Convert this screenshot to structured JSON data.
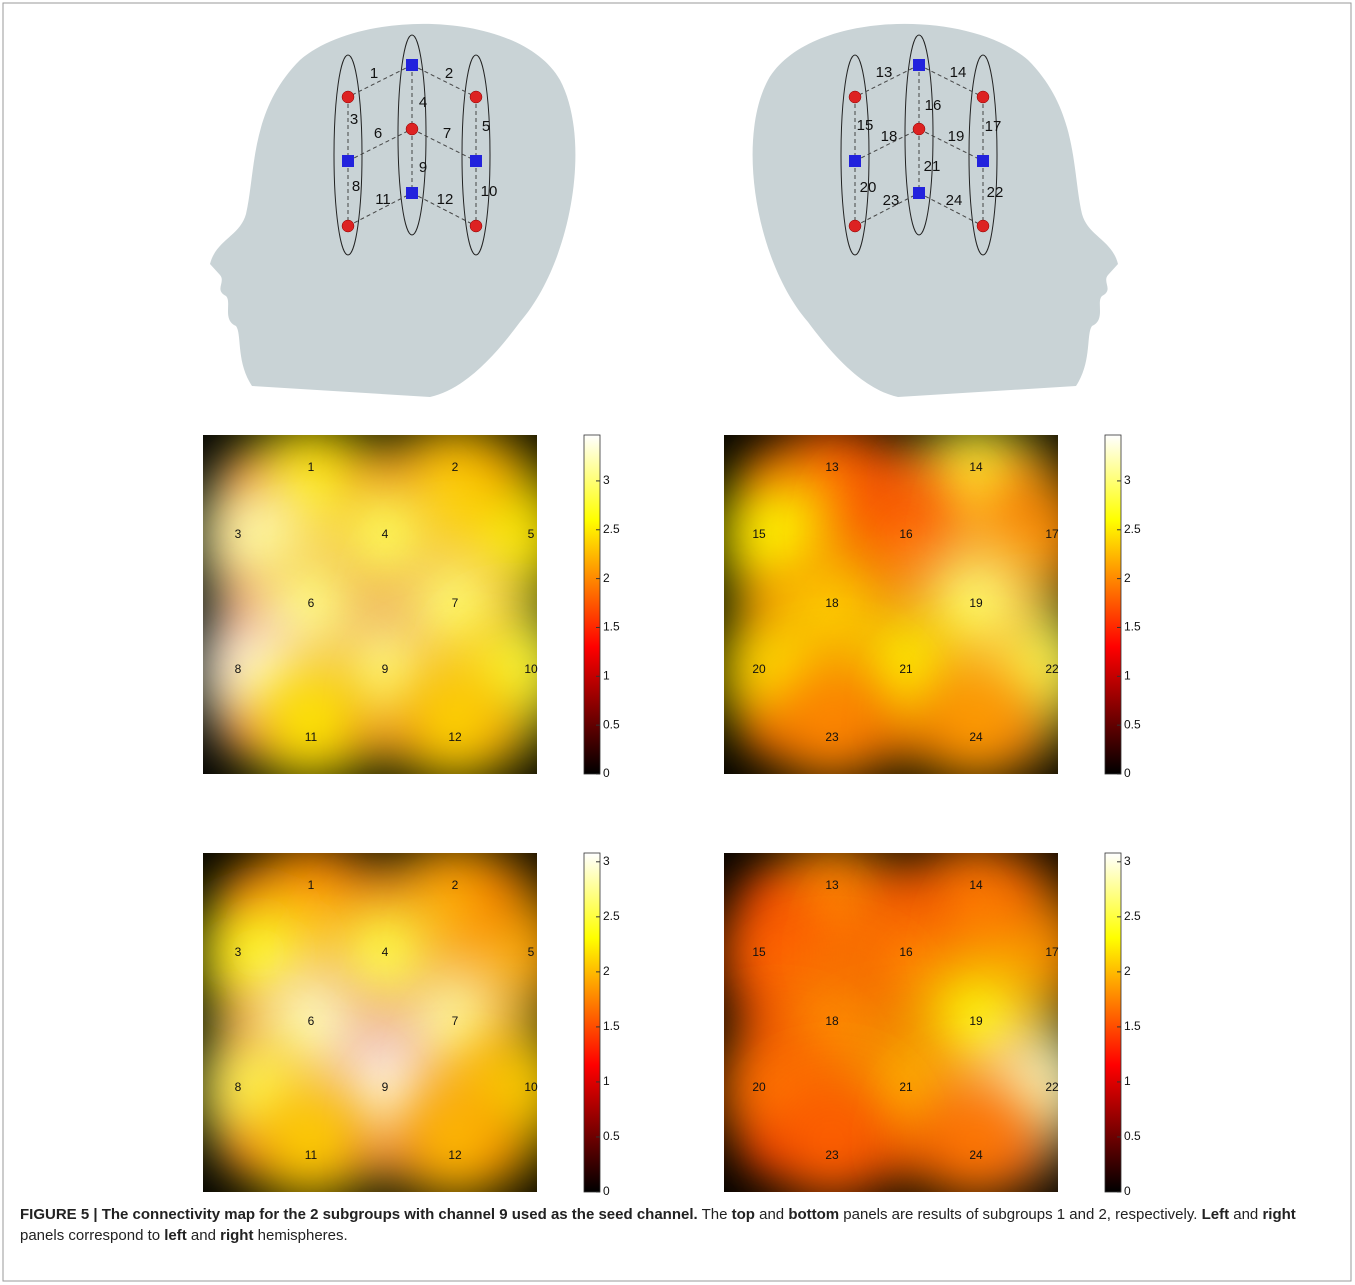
{
  "heads": [
    {
      "channels": [
        1,
        2,
        3,
        4,
        5,
        6,
        7,
        8,
        9,
        10,
        11,
        12
      ]
    },
    {
      "channels": [
        13,
        14,
        15,
        16,
        17,
        18,
        19,
        20,
        21,
        22,
        23,
        24
      ]
    }
  ],
  "panels": [
    {
      "clim": [
        0,
        3.47
      ],
      "ticks": [
        0,
        0.5,
        1,
        1.5,
        2,
        2.5,
        3
      ],
      "channels": [
        {
          "label": 1,
          "value": 2.5
        },
        {
          "label": 2,
          "value": 2.3
        },
        {
          "label": 3,
          "value": 3.2
        },
        {
          "label": 4,
          "value": 2.9
        },
        {
          "label": 5,
          "value": 2.5
        },
        {
          "label": 6,
          "value": 3.0
        },
        {
          "label": 7,
          "value": 3.0
        },
        {
          "label": 8,
          "value": 3.4
        },
        {
          "label": 9,
          "value": 3.1
        },
        {
          "label": 10,
          "value": 2.8
        },
        {
          "label": 11,
          "value": 2.5
        },
        {
          "label": 12,
          "value": 2.4
        }
      ]
    },
    {
      "clim": [
        0,
        3.47
      ],
      "ticks": [
        0,
        0.5,
        1,
        1.5,
        2,
        2.5,
        3
      ],
      "channels": [
        {
          "label": 13,
          "value": 1.8
        },
        {
          "label": 14,
          "value": 2.8
        },
        {
          "label": 15,
          "value": 2.6
        },
        {
          "label": 16,
          "value": 1.8
        },
        {
          "label": 17,
          "value": 2.0
        },
        {
          "label": 18,
          "value": 2.3
        },
        {
          "label": 19,
          "value": 3.0
        },
        {
          "label": 20,
          "value": 2.5
        },
        {
          "label": 21,
          "value": 2.6
        },
        {
          "label": 22,
          "value": 2.9
        },
        {
          "label": 23,
          "value": 2.0
        },
        {
          "label": 24,
          "value": 2.1
        }
      ]
    },
    {
      "clim": [
        0,
        3.08
      ],
      "ticks": [
        0,
        0.5,
        1,
        1.5,
        2,
        2.5,
        3
      ],
      "channels": [
        {
          "label": 1,
          "value": 1.8
        },
        {
          "label": 2,
          "value": 1.9
        },
        {
          "label": 3,
          "value": 2.4
        },
        {
          "label": 4,
          "value": 2.5
        },
        {
          "label": 5,
          "value": 1.9
        },
        {
          "label": 6,
          "value": 2.9
        },
        {
          "label": 7,
          "value": 2.8
        },
        {
          "label": 8,
          "value": 2.6
        },
        {
          "label": 9,
          "value": 3.1
        },
        {
          "label": 10,
          "value": 2.1
        },
        {
          "label": 11,
          "value": 2.1
        },
        {
          "label": 12,
          "value": 2.0
        }
      ]
    },
    {
      "clim": [
        0,
        3.08
      ],
      "ticks": [
        0,
        0.5,
        1,
        1.5,
        2,
        2.5,
        3
      ],
      "channels": [
        {
          "label": 13,
          "value": 1.8
        },
        {
          "label": 14,
          "value": 1.7
        },
        {
          "label": 15,
          "value": 1.6
        },
        {
          "label": 16,
          "value": 1.7
        },
        {
          "label": 17,
          "value": 1.8
        },
        {
          "label": 18,
          "value": 1.8
        },
        {
          "label": 19,
          "value": 2.3
        },
        {
          "label": 20,
          "value": 1.7
        },
        {
          "label": 21,
          "value": 2.0
        },
        {
          "label": 22,
          "value": 2.9
        },
        {
          "label": 23,
          "value": 1.6
        },
        {
          "label": 24,
          "value": 1.7
        }
      ]
    }
  ],
  "caption": [
    {
      "text": "FIGURE 5 | The connectivity map for the 2 subgroups with channel 9 used as the seed channel.",
      "bold": true
    },
    {
      "text": " The ",
      "bold": false
    },
    {
      "text": "top",
      "bold": true
    },
    {
      "text": " and ",
      "bold": false
    },
    {
      "text": "bottom",
      "bold": true
    },
    {
      "text": " panels are results of subgroups 1 and 2, respectively. ",
      "bold": false
    },
    {
      "text": "Left",
      "bold": true
    },
    {
      "text": " and ",
      "bold": false
    },
    {
      "text": "right",
      "bold": true
    },
    {
      "text": " panels correspond to ",
      "bold": false
    },
    {
      "text": "left",
      "bold": true
    },
    {
      "text": " and ",
      "bold": false
    },
    {
      "text": "right",
      "bold": true
    },
    {
      "text": " hemispheres.",
      "bold": false
    }
  ]
}
